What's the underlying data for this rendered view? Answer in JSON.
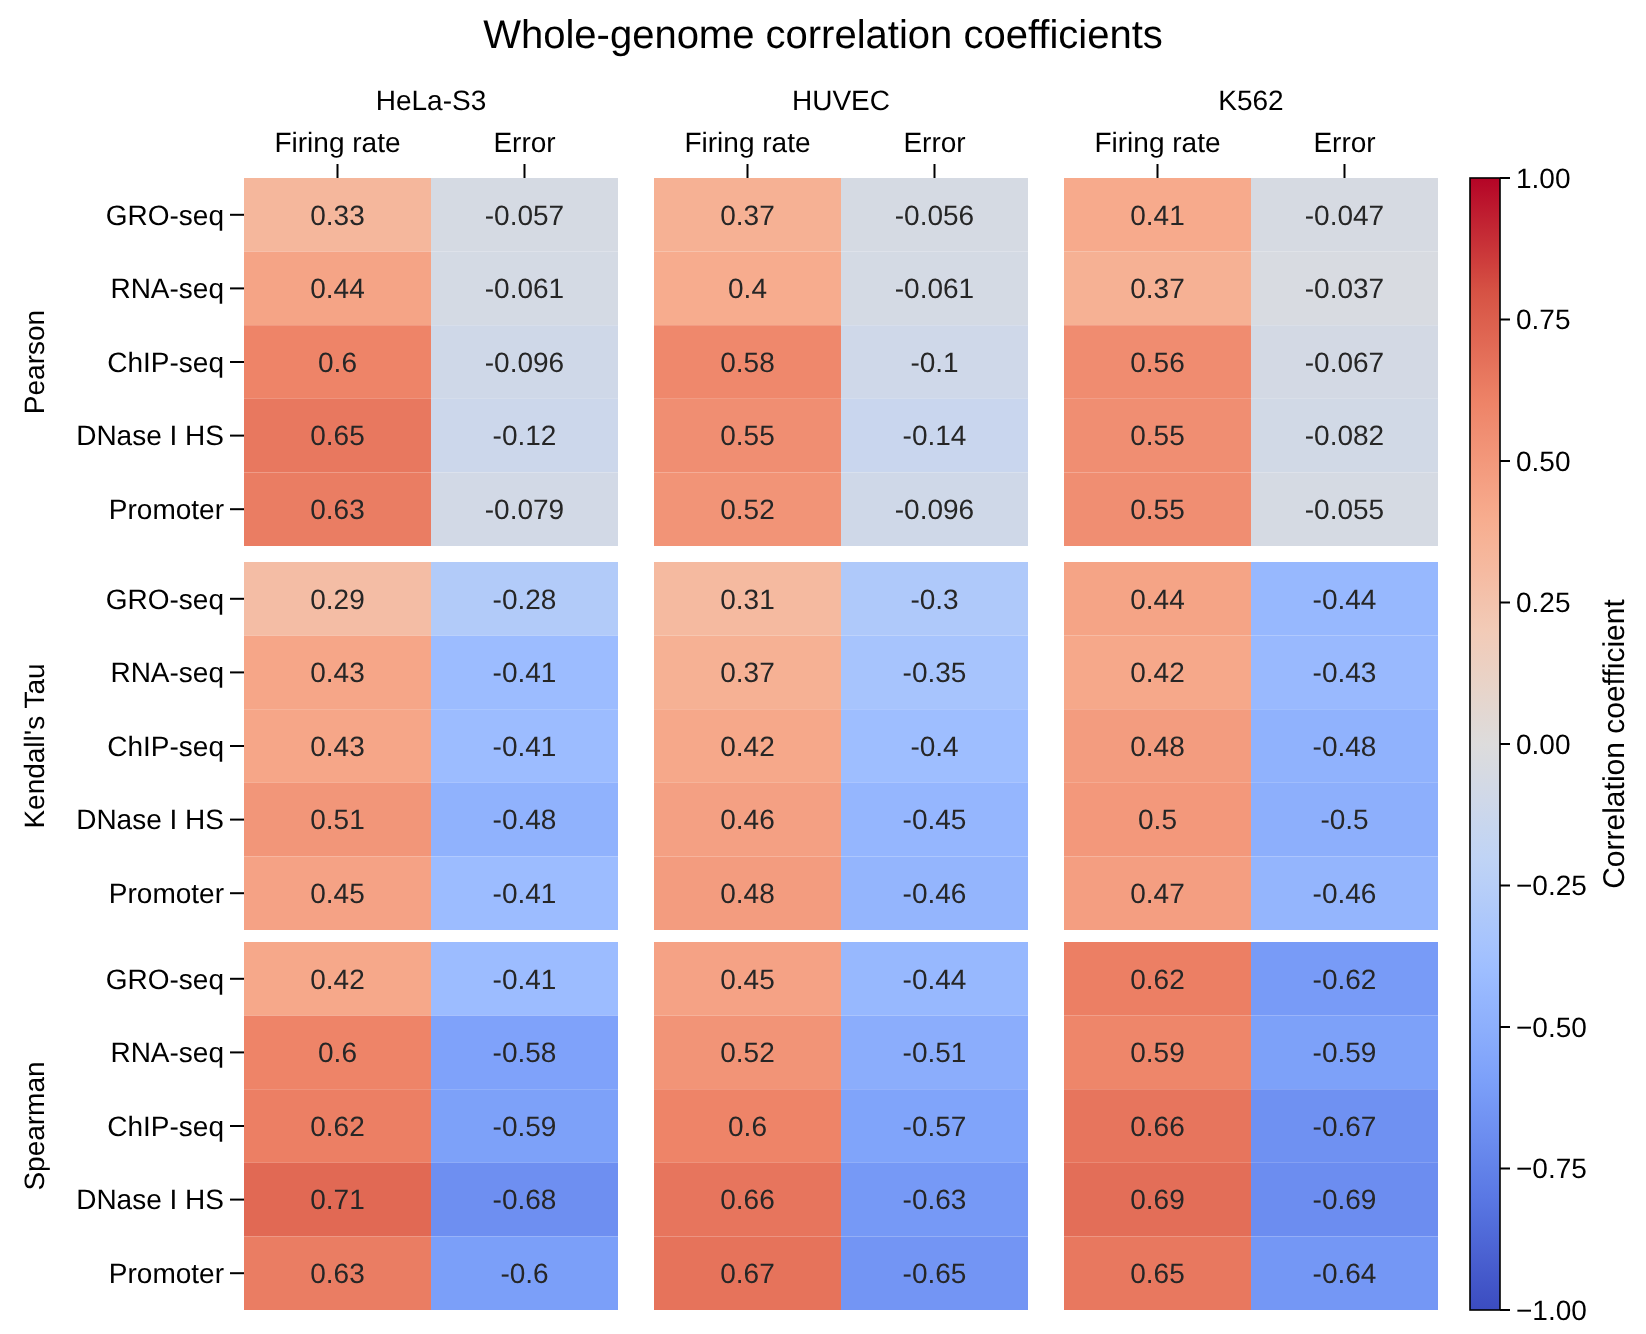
{
  "chart_data": [
    {
      "type": "heatmap",
      "title": "Whole-genome correlation coefficients",
      "subtitle": "HeLa-S3",
      "annotations": [
        "Pearson",
        "Kendall's Tau",
        "Spearman"
      ],
      "categories": [
        "Firing rate",
        "Error"
      ],
      "y_categories": [
        "GRO-seq",
        "RNA-seq",
        "ChIP-seq",
        "DNase I HS",
        "Promoter",
        "GRO-seq",
        "RNA-seq",
        "ChIP-seq",
        "DNase I HS",
        "Promoter",
        "GRO-seq",
        "RNA-seq",
        "ChIP-seq",
        "DNase I HS",
        "Promoter"
      ],
      "cells": [
        [
          0.33,
          -0.057
        ],
        [
          0.44,
          -0.061
        ],
        [
          0.6,
          -0.096
        ],
        [
          0.65,
          -0.12
        ],
        [
          0.63,
          -0.079
        ],
        [
          0.29,
          -0.28
        ],
        [
          0.43,
          -0.41
        ],
        [
          0.43,
          -0.41
        ],
        [
          0.51,
          -0.48
        ],
        [
          0.45,
          -0.41
        ],
        [
          0.42,
          -0.41
        ],
        [
          0.6,
          -0.58
        ],
        [
          0.62,
          -0.59
        ],
        [
          0.71,
          -0.68
        ],
        [
          0.63,
          -0.6
        ]
      ],
      "data_labels": true
    },
    {
      "type": "heatmap",
      "title": "HUVEC",
      "categories": [
        "Firing rate",
        "Error"
      ],
      "y_categories": [
        null,
        null,
        null,
        null,
        null,
        null,
        null,
        null,
        null,
        null,
        null,
        null,
        null,
        null,
        null
      ],
      "cells": [
        [
          0.37,
          -0.056
        ],
        [
          0.4,
          -0.061
        ],
        [
          0.58,
          -0.1
        ],
        [
          0.55,
          -0.14
        ],
        [
          0.52,
          -0.096
        ],
        [
          0.31,
          -0.3
        ],
        [
          0.37,
          -0.35
        ],
        [
          0.42,
          -0.4
        ],
        [
          0.46,
          -0.45
        ],
        [
          0.48,
          -0.46
        ],
        [
          0.45,
          -0.44
        ],
        [
          0.52,
          -0.51
        ],
        [
          0.6,
          -0.57
        ],
        [
          0.66,
          -0.63
        ],
        [
          0.67,
          -0.65
        ]
      ],
      "data_labels": true
    },
    {
      "type": "heatmap",
      "title": "K562",
      "categories": [
        "Firing rate",
        "Error"
      ],
      "y_categories": [
        null,
        null,
        null,
        null,
        null,
        null,
        null,
        null,
        null,
        null,
        null,
        null,
        null,
        null,
        null
      ],
      "cells": [
        [
          0.41,
          -0.047
        ],
        [
          0.37,
          -0.037
        ],
        [
          0.56,
          -0.067
        ],
        [
          0.55,
          -0.082
        ],
        [
          0.55,
          -0.055
        ],
        [
          0.44,
          -0.44
        ],
        [
          0.42,
          -0.43
        ],
        [
          0.48,
          -0.48
        ],
        [
          0.5,
          -0.5
        ],
        [
          0.47,
          -0.46
        ],
        [
          0.62,
          -0.62
        ],
        [
          0.59,
          -0.59
        ],
        [
          0.66,
          -0.67
        ],
        [
          0.69,
          -0.69
        ],
        [
          0.65,
          -0.64
        ]
      ],
      "data_labels": true,
      "clim": [
        -1,
        1
      ],
      "clabel": "Correlation coefficient",
      "cticks": [
        {
          "value": -1,
          "label": "−1.00"
        },
        {
          "value": -0.75,
          "label": "−0.75"
        },
        {
          "value": -0.5,
          "label": "−0.50"
        },
        {
          "value": -0.25,
          "label": "−0.25"
        },
        {
          "value": 0,
          "label": "0.00"
        },
        {
          "value": 0.25,
          "label": "0.25"
        },
        {
          "value": 0.5,
          "label": "0.50"
        },
        {
          "value": 0.75,
          "label": "0.75"
        },
        {
          "value": 1,
          "label": "1.00"
        }
      ]
    }
  ]
}
